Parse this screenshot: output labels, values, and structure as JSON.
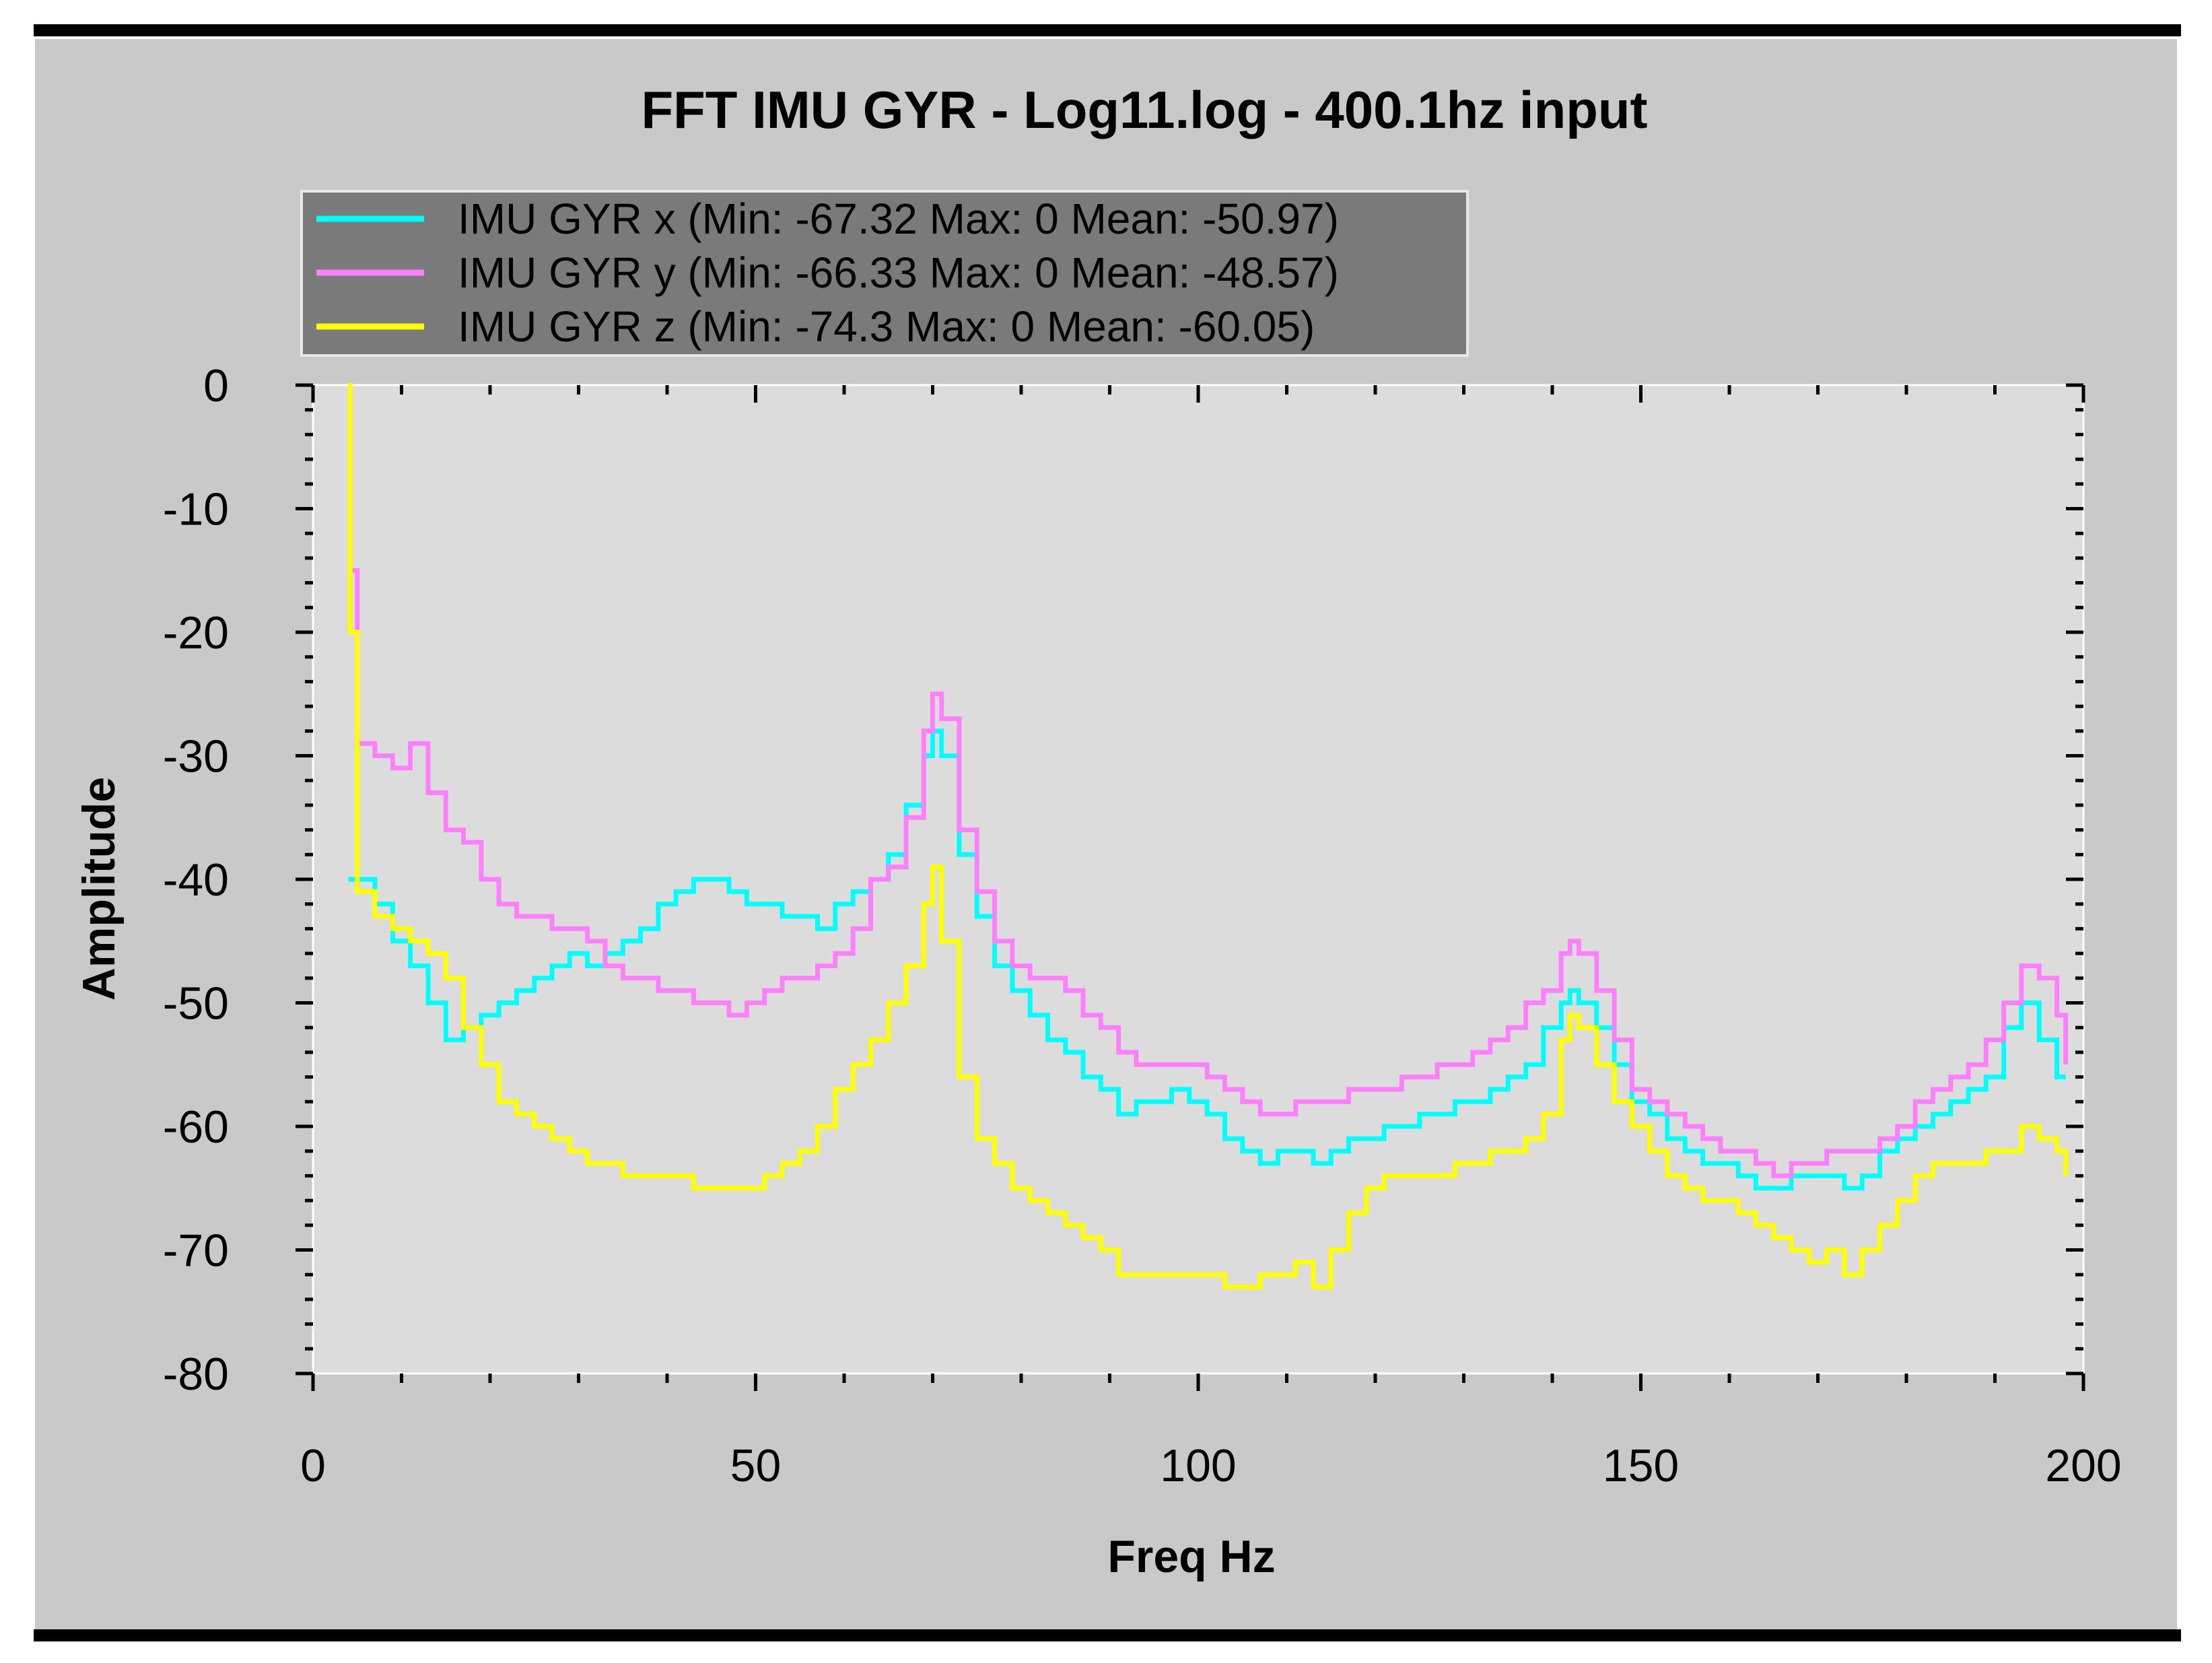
{
  "chart_data": {
    "type": "line",
    "title": "FFT IMU GYR - Log11.log - 400.1hz input",
    "xlabel": "Freq Hz",
    "ylabel": "Amplitude",
    "xlim": [
      0,
      200
    ],
    "ylim": [
      -80,
      0
    ],
    "x_ticks": [
      "0",
      "50",
      "100",
      "150",
      "200"
    ],
    "y_ticks": [
      "0",
      "-10",
      "-20",
      "-30",
      "-40",
      "-50",
      "-60",
      "-70",
      "-80"
    ],
    "grid": false,
    "legend_position": "top-left",
    "plot_background": "#dcdcdc",
    "panel_background": "#c9c9c9",
    "legend_background": "#7a7a7a",
    "series": [
      {
        "name": "IMU GYR x (Min: -67.32 Max: 0 Mean: -50.97)",
        "color": "#00ffff",
        "x": [
          4,
          5,
          7,
          9,
          11,
          13,
          15,
          17,
          19,
          21,
          23,
          25,
          27,
          29,
          31,
          33,
          35,
          37,
          39,
          41,
          43,
          45,
          47,
          49,
          51,
          53,
          55,
          57,
          59,
          61,
          63,
          65,
          67,
          69,
          70,
          71,
          73,
          75,
          77,
          79,
          81,
          83,
          85,
          87,
          89,
          91,
          93,
          95,
          97,
          99,
          101,
          103,
          105,
          107,
          109,
          111,
          113,
          115,
          117,
          119,
          121,
          123,
          125,
          127,
          129,
          131,
          133,
          135,
          137,
          139,
          141,
          142,
          143,
          145,
          147,
          149,
          151,
          153,
          155,
          157,
          159,
          161,
          163,
          165,
          167,
          169,
          171,
          173,
          175,
          177,
          179,
          181,
          183,
          185,
          187,
          189,
          191,
          193,
          195,
          197,
          198
        ],
        "values": [
          -40,
          -40,
          -42,
          -45,
          -47,
          -50,
          -53,
          -52,
          -51,
          -50,
          -49,
          -48,
          -47,
          -46,
          -47,
          -46,
          -45,
          -44,
          -42,
          -41,
          -40,
          -40,
          -41,
          -42,
          -42,
          -43,
          -43,
          -44,
          -42,
          -41,
          -40,
          -38,
          -34,
          -30,
          -28,
          -30,
          -38,
          -43,
          -47,
          -49,
          -51,
          -53,
          -54,
          -56,
          -57,
          -59,
          -58,
          -58,
          -57,
          -58,
          -59,
          -61,
          -62,
          -63,
          -62,
          -62,
          -63,
          -62,
          -61,
          -61,
          -60,
          -60,
          -59,
          -59,
          -58,
          -58,
          -57,
          -56,
          -55,
          -52,
          -50,
          -49,
          -50,
          -52,
          -55,
          -58,
          -59,
          -61,
          -62,
          -63,
          -63,
          -64,
          -65,
          -65,
          -64,
          -64,
          -64,
          -65,
          -64,
          -62,
          -61,
          -60,
          -59,
          -58,
          -57,
          -56,
          -52,
          -50,
          -53,
          -56,
          -56
        ]
      },
      {
        "name": "IMU GYR y (Min: -66.33 Max: 0 Mean: -48.57)",
        "color": "#ff80ff",
        "x": [
          4,
          5,
          7,
          9,
          11,
          13,
          15,
          17,
          19,
          21,
          23,
          25,
          27,
          29,
          31,
          33,
          35,
          37,
          39,
          41,
          43,
          45,
          47,
          49,
          51,
          53,
          55,
          57,
          59,
          61,
          63,
          65,
          67,
          69,
          70,
          71,
          73,
          75,
          77,
          79,
          81,
          83,
          85,
          87,
          89,
          91,
          93,
          95,
          97,
          99,
          101,
          103,
          105,
          107,
          109,
          111,
          113,
          115,
          117,
          119,
          121,
          123,
          125,
          127,
          129,
          131,
          133,
          135,
          137,
          139,
          141,
          142,
          143,
          145,
          147,
          149,
          151,
          153,
          155,
          157,
          159,
          161,
          163,
          165,
          167,
          169,
          171,
          173,
          175,
          177,
          179,
          181,
          183,
          185,
          187,
          189,
          191,
          193,
          195,
          197,
          198
        ],
        "values": [
          -15,
          -29,
          -30,
          -31,
          -29,
          -33,
          -36,
          -37,
          -40,
          -42,
          -43,
          -43,
          -44,
          -44,
          -45,
          -47,
          -48,
          -48,
          -49,
          -49,
          -50,
          -50,
          -51,
          -50,
          -49,
          -48,
          -48,
          -47,
          -46,
          -44,
          -40,
          -39,
          -35,
          -28,
          -25,
          -27,
          -36,
          -41,
          -45,
          -47,
          -48,
          -48,
          -49,
          -51,
          -52,
          -54,
          -55,
          -55,
          -55,
          -55,
          -56,
          -57,
          -58,
          -59,
          -59,
          -58,
          -58,
          -58,
          -57,
          -57,
          -57,
          -56,
          -56,
          -55,
          -55,
          -54,
          -53,
          -52,
          -50,
          -49,
          -46,
          -45,
          -46,
          -49,
          -53,
          -57,
          -58,
          -59,
          -60,
          -61,
          -62,
          -62,
          -63,
          -64,
          -63,
          -63,
          -62,
          -62,
          -62,
          -61,
          -60,
          -58,
          -57,
          -56,
          -55,
          -53,
          -50,
          -47,
          -48,
          -51,
          -55
        ]
      },
      {
        "name": "IMU GYR z (Min: -74.3 Max: 0 Mean: -60.05)",
        "color": "#ffff00",
        "x": [
          4,
          4.2,
          5,
          7,
          9,
          11,
          13,
          15,
          17,
          19,
          21,
          23,
          25,
          27,
          29,
          31,
          33,
          35,
          37,
          39,
          41,
          43,
          45,
          47,
          49,
          51,
          53,
          55,
          57,
          59,
          61,
          63,
          65,
          67,
          69,
          70,
          71,
          73,
          75,
          77,
          79,
          81,
          83,
          85,
          87,
          89,
          91,
          93,
          95,
          97,
          99,
          101,
          103,
          105,
          107,
          109,
          111,
          113,
          115,
          117,
          119,
          121,
          123,
          125,
          127,
          129,
          131,
          133,
          135,
          137,
          139,
          141,
          142,
          143,
          145,
          147,
          149,
          151,
          153,
          155,
          157,
          159,
          161,
          163,
          165,
          167,
          169,
          171,
          173,
          175,
          177,
          179,
          181,
          183,
          185,
          187,
          189,
          191,
          193,
          195,
          197,
          198
        ],
        "values": [
          0,
          -20,
          -41,
          -43,
          -44,
          -45,
          -46,
          -48,
          -52,
          -55,
          -58,
          -59,
          -60,
          -61,
          -62,
          -63,
          -63,
          -64,
          -64,
          -64,
          -64,
          -65,
          -65,
          -65,
          -65,
          -64,
          -63,
          -62,
          -60,
          -57,
          -55,
          -53,
          -50,
          -47,
          -42,
          -39,
          -45,
          -56,
          -61,
          -63,
          -65,
          -66,
          -67,
          -68,
          -69,
          -70,
          -72,
          -72,
          -72,
          -72,
          -72,
          -72,
          -73,
          -73,
          -72,
          -72,
          -71,
          -73,
          -70,
          -67,
          -65,
          -64,
          -64,
          -64,
          -64,
          -63,
          -63,
          -62,
          -62,
          -61,
          -59,
          -53,
          -51,
          -52,
          -55,
          -58,
          -60,
          -62,
          -64,
          -65,
          -66,
          -66,
          -67,
          -68,
          -69,
          -70,
          -71,
          -70,
          -72,
          -70,
          -68,
          -66,
          -64,
          -63,
          -63,
          -63,
          -62,
          -62,
          -60,
          -61,
          -62,
          -64
        ]
      }
    ]
  }
}
